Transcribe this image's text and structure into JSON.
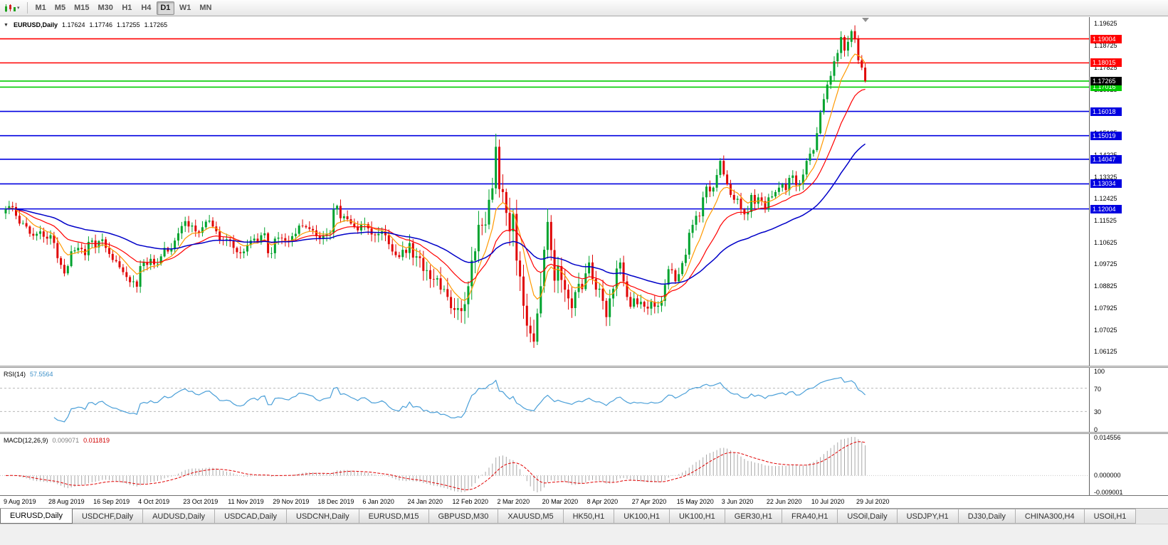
{
  "toolbar": {
    "timeframes": [
      "M1",
      "M5",
      "M15",
      "M30",
      "H1",
      "H4",
      "D1",
      "W1",
      "MN"
    ],
    "active_timeframe": "D1"
  },
  "chart": {
    "symbol_period": "EURUSD,Daily",
    "ohlc": {
      "open": "1.17624",
      "high": "1.17746",
      "low": "1.17255",
      "close": "1.17265"
    },
    "price_axis": {
      "labels": [
        "1.19625",
        "1.18725",
        "1.17825",
        "1.16925",
        "1.16025",
        "1.15125",
        "1.14225",
        "1.13325",
        "1.12425",
        "1.11525",
        "1.10625",
        "1.09725",
        "1.08825",
        "1.07925",
        "1.07025",
        "1.06125"
      ]
    },
    "hlines": [
      {
        "label": "1.19004",
        "color": "#FF0000"
      },
      {
        "label": "1.18015",
        "color": "#FF0000"
      },
      {
        "label": "1.17016",
        "color": "#00CC00"
      },
      {
        "label": "1.16018",
        "color": "#0000E0"
      },
      {
        "label": "1.15019",
        "color": "#0000E0"
      },
      {
        "label": "1.14047",
        "color": "#0000E0"
      },
      {
        "label": "1.13034",
        "color": "#0000E0"
      },
      {
        "label": "1.12004",
        "color": "#0000E0"
      }
    ],
    "bid_line": {
      "label": "1.17265",
      "line_color": "#00CC00",
      "badge_color": "#000000"
    }
  },
  "rsi_panel": {
    "name": "RSI(14)",
    "value": "57.5564",
    "line_color": "#4A9FD8",
    "scale_labels": [
      "100",
      "70",
      "30",
      "0"
    ],
    "level_lines": [
      70,
      30
    ]
  },
  "macd_panel": {
    "name": "MACD(12,26,9)",
    "value_main": "0.009071",
    "value_signal": "0.011819",
    "histogram_color": "#A8A8A8",
    "signal_color": "#E00000",
    "scale_top": "0.014556",
    "scale_zero": "0.000000",
    "scale_bottom": "-0.009001"
  },
  "time_axis": {
    "labels": [
      "9 Aug 2019",
      "28 Aug 2019",
      "16 Sep 2019",
      "4 Oct 2019",
      "23 Oct 2019",
      "11 Nov 2019",
      "29 Nov 2019",
      "18 Dec 2019",
      "6 Jan 2020",
      "24 Jan 2020",
      "12 Feb 2020",
      "2 Mar 2020",
      "20 Mar 2020",
      "8 Apr 2020",
      "27 Apr 2020",
      "15 May 2020",
      "3 Jun 2020",
      "22 Jun 2020",
      "10 Jul 2020",
      "29 Jul 2020"
    ]
  },
  "tabs": {
    "active_index": 0,
    "items": [
      "EURUSD,Daily",
      "USDCHF,Daily",
      "AUDUSD,Daily",
      "USDCAD,Daily",
      "USDCNH,Daily",
      "EURUSD,M15",
      "GBPUSD,M30",
      "XAUUSD,M5",
      "HK50,H1",
      "UK100,H1",
      "UK100,H1",
      "GER30,H1",
      "FRA40,H1",
      "USOil,Daily",
      "USDJPY,H1",
      "DJ30,Daily",
      "CHINA300,H4",
      "USOil,H1"
    ]
  },
  "chart_data": {
    "type": "candlestick",
    "symbol": "EURUSD",
    "period": "Daily",
    "up_color": "#00A32E",
    "down_color": "#E00505",
    "price_range_top": 1.199,
    "price_range_bottom": 1.0555,
    "horizontal_levels": [
      1.19004,
      1.18015,
      1.17265,
      1.17016,
      1.16018,
      1.15019,
      1.14047,
      1.13034,
      1.12004
    ],
    "ma_overlays": [
      {
        "period": 8,
        "color": "#FF9900",
        "width": 1.2
      },
      {
        "period": 20,
        "color": "#FF0000",
        "width": 1.2
      },
      {
        "period": 50,
        "color": "#0000C8",
        "width": 1.5
      }
    ],
    "indicators": [
      {
        "name": "RSI",
        "period": 14,
        "last": 57.5564
      },
      {
        "name": "MACD",
        "fast": 12,
        "slow": 26,
        "signal": 9,
        "last_main": 0.009071,
        "last_signal": 0.011819
      }
    ],
    "closes": [
      1.12,
      1.1212,
      1.1208,
      1.1172,
      1.114,
      1.1142,
      1.1128,
      1.1098,
      1.109,
      1.1098,
      1.1108,
      1.1086,
      1.1078,
      1.1092,
      1.106,
      1.0998,
      1.097,
      1.0935,
      1.0965,
      1.1026,
      1.103,
      1.104,
      1.1035,
      1.101,
      1.1065,
      1.107,
      1.1042,
      1.1068,
      1.1075,
      1.104,
      1.1015,
      1.099,
      1.0985,
      1.096,
      1.094,
      1.092,
      1.0899,
      1.0902,
      1.088,
      1.0965,
      1.098,
      1.097,
      1.0995,
      1.0972,
      1.0975,
      1.1005,
      1.104,
      1.1025,
      1.1035,
      1.107,
      1.11,
      1.113,
      1.115,
      1.1128,
      1.1132,
      1.1108,
      1.1102,
      1.1125,
      1.1148,
      1.1152,
      1.1128,
      1.1108,
      1.1072,
      1.107,
      1.1075,
      1.1068,
      1.104,
      1.1022,
      1.1018,
      1.1025,
      1.1052,
      1.107,
      1.1078,
      1.1062,
      1.1092,
      1.11,
      1.1018,
      1.1018,
      1.1078,
      1.1082,
      1.108,
      1.107,
      1.1065,
      1.1088,
      1.1098,
      1.1132,
      1.113,
      1.1125,
      1.1118,
      1.1112,
      1.1088,
      1.1078,
      1.1092,
      1.1098,
      1.1102,
      1.1198,
      1.1213,
      1.1162,
      1.117,
      1.1158,
      1.114,
      1.1128,
      1.1112,
      1.1135,
      1.1138,
      1.112,
      1.1095,
      1.1092,
      1.1098,
      1.1108,
      1.1092,
      1.1055,
      1.1025,
      1.101,
      1.1002,
      1.1032,
      1.1019,
      1.106,
      1.1,
      1.1005,
      1.0998,
      1.0945,
      1.0948,
      1.0912,
      1.091,
      1.0915,
      1.0868,
      1.087,
      1.0838,
      1.0792,
      1.0785,
      1.0792,
      1.078,
      1.0808,
      1.0882,
      1.0988,
      1.1026,
      1.1135,
      1.1132,
      1.1136,
      1.1238,
      1.1285,
      1.1456,
      1.1282,
      1.127,
      1.1184,
      1.1108,
      1.118,
      1.0988,
      1.0922,
      1.0802,
      1.072,
      1.0688,
      1.0654,
      1.077,
      1.0882,
      1.1032,
      1.1147,
      1.1031,
      1.0905,
      1.0965,
      1.0908,
      1.0868,
      1.0832,
      1.0792,
      1.0858,
      1.0892,
      1.087,
      1.0935,
      1.098,
      1.0912,
      1.0868,
      1.0872,
      1.0822,
      1.0755,
      1.0832,
      1.0872,
      1.0955,
      1.098,
      1.0902,
      1.0838,
      1.0798,
      1.0832,
      1.0808,
      1.0818,
      1.0798,
      1.079,
      1.0818,
      1.0798,
      1.0802,
      1.0822,
      1.0888,
      1.0952,
      1.0948,
      1.0902,
      1.0932,
      1.0978,
      1.1012,
      1.1102,
      1.1135,
      1.1172,
      1.117,
      1.1248,
      1.1292,
      1.1272,
      1.1288,
      1.134,
      1.1398,
      1.1342,
      1.1302,
      1.1258,
      1.1238,
      1.1242,
      1.1198,
      1.1178,
      1.1188,
      1.1258,
      1.1222,
      1.1248,
      1.1232,
      1.1198,
      1.1248,
      1.1252,
      1.127,
      1.1288,
      1.1302,
      1.1278,
      1.1328,
      1.1338,
      1.1298,
      1.1302,
      1.1342,
      1.1398,
      1.1428,
      1.1442,
      1.1512,
      1.1598,
      1.1652,
      1.1712,
      1.1748,
      1.1808,
      1.1842,
      1.1908,
      1.1852,
      1.1888,
      1.1932,
      1.1902,
      1.1812,
      1.1782,
      1.17265
    ]
  }
}
